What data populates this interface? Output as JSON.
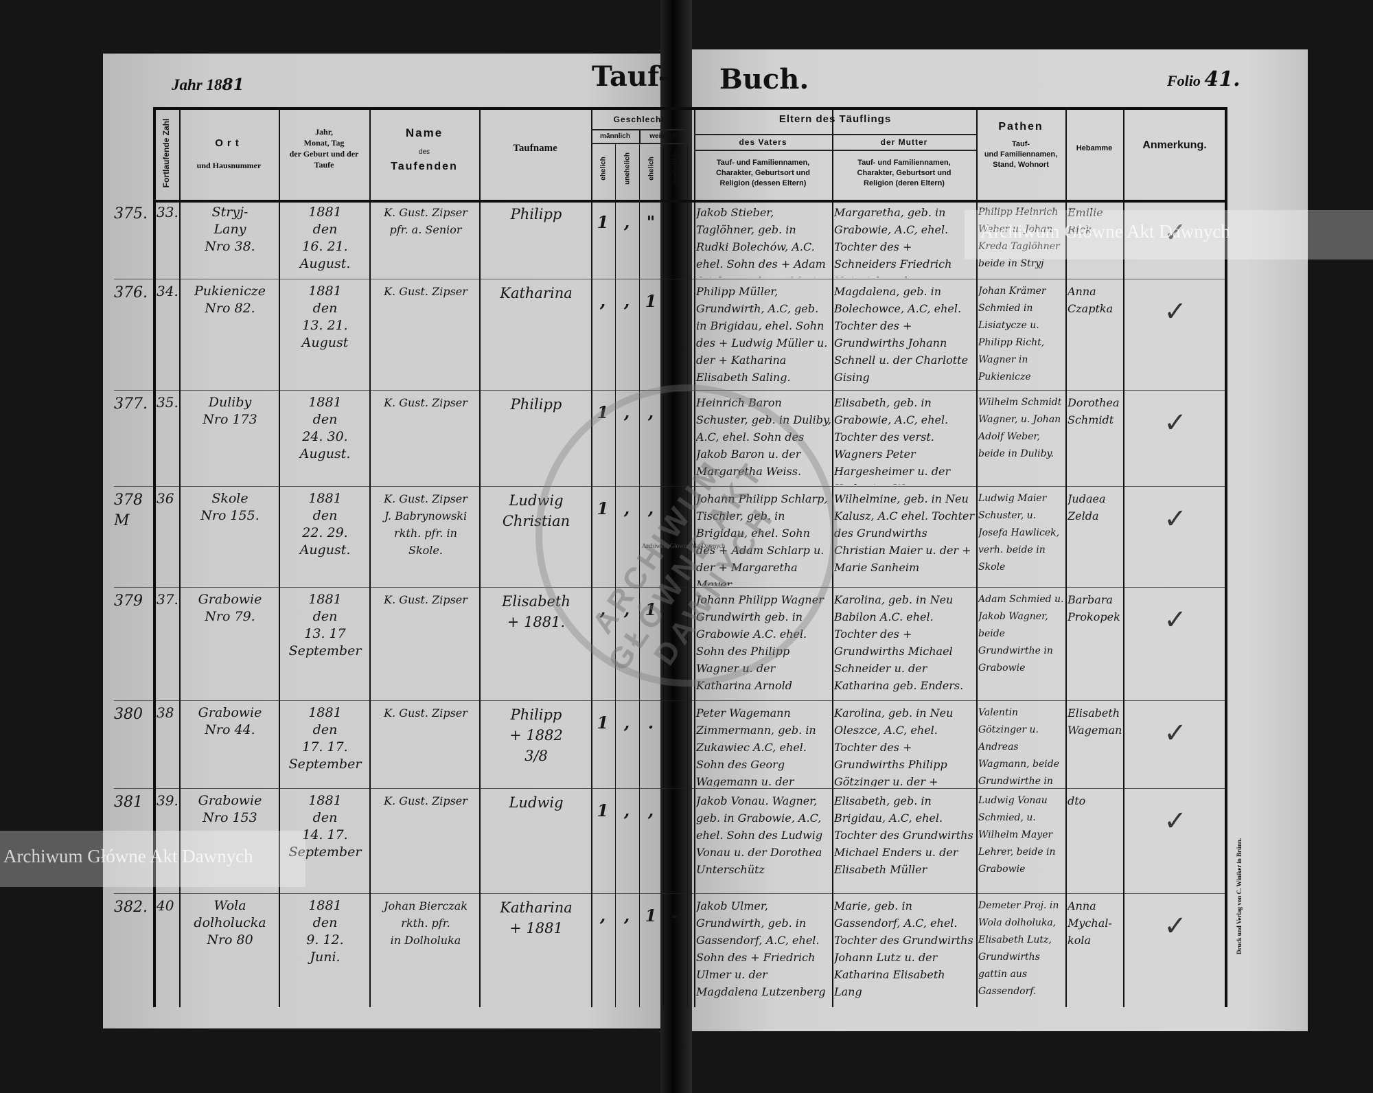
{
  "header": {
    "year_label": "Jahr 18",
    "year_hand": "81",
    "title_left": "Tauf-",
    "title_right": "Buch.",
    "folio_label": "Folio",
    "folio_hand": "41."
  },
  "columns": {
    "fortlaufende": "Fortlaufende Zahl",
    "ort_1": "Ort",
    "ort_2": "und Hausnummer",
    "jahr": "Jahr,\nMonat, Tag\nder Geburt und der\nTaufe",
    "name_1": "Name",
    "name_2": "des",
    "name_3": "Taufenden",
    "taufname": "Taufname",
    "geschlecht": "Geschlecht",
    "maennlich": "männlich",
    "weiblich": "weiblich",
    "ehelich": "ehelich",
    "unehelich": "unehelich",
    "eltern": "Eltern des Täuflings",
    "vater": "des Vaters",
    "mutter": "der Mutter",
    "vater_sub": "Tauf- und Familiennamen,\nCharakter, Geburtsort und\nReligion (dessen Eltern)",
    "mutter_sub": "Tauf- und Familiennamen,\nCharakter, Geburtsort und\nReligion (deren Eltern)",
    "pathen_1": "Pathen",
    "pathen_2": "Tauf-\nund Familiennamen,\nStand, Wohnort",
    "hebamme": "Hebamme",
    "anmerkung": "Anmerkung."
  },
  "rows": [
    {
      "num": "375.",
      "seq": "33.",
      "ort": "Stryj-\nLany\nNro 38.",
      "date": "1881\nden\n16.  21.\nAugust.",
      "name": "K. Gust. Zipser\npfr. a. Senior",
      "taufname": "Philipp",
      "sex": [
        "1",
        ",",
        "\"",
        ""
      ],
      "vater": "Jakob Stieber, Taglöhner, geb. in Rudki Bolechów, A.C. ehel. Sohn des + Adam Stieber u. der + Maria Elisabeth Geistlinger",
      "mutter": "Margaretha, geb. in Grabowie, A.C, ehel. Tochter des + Schneiders Friedrich Heinrich u. der + Christine Schreier.",
      "pathen": "Philipp Heinrich Weber u. Johan Kreda Taglöhner beide in Stryj",
      "hebamme": "Emilie Rick",
      "anmerkung": "✓"
    },
    {
      "num": "376.",
      "seq": "34.",
      "ort": "Pukienicze\nNro 82.",
      "date": "1881\nden\n13.  21.\nAugust",
      "name": "K. Gust. Zipser",
      "taufname": "Katharina",
      "sex": [
        ",",
        ",",
        "1",
        ""
      ],
      "vater": "Philipp Müller, Grundwirth, A.C, geb. in Brigidau, ehel. Sohn des + Ludwig Müller u. der + Katharina Elisabeth Saling.",
      "mutter": "Magdalena, geb. in Bolechowce, A.C, ehel. Tochter des + Grundwirths Johann Schnell u. der Charlotte Gising",
      "pathen": "Johan Krämer Schmied in Lisiatycze u. Philipp Richt, Wagner in Pukienicze",
      "hebamme": "Anna Czaptka",
      "anmerkung": "✓"
    },
    {
      "num": "377.",
      "seq": "35.",
      "ort": "Duliby\nNro 173",
      "date": "1881\nden\n24.  30.\nAugust.",
      "name": "K. Gust. Zipser",
      "taufname": "Philipp",
      "sex": [
        "1",
        ",",
        ",",
        ""
      ],
      "vater": "Heinrich Baron Schuster, geb. in Duliby, A.C, ehel. Sohn des Jakob Baron u. der Margaretha Weiss.",
      "mutter": "Elisabeth, geb. in Grabowie, A.C, ehel. Tochter des verst. Wagners Peter Hargesheimer u. der Katharina Wageman",
      "pathen": "Wilhelm Schmidt Wagner, u. Johan Adolf Weber, beide in Duliby.",
      "hebamme": "Dorothea Schmidt",
      "anmerkung": "✓"
    },
    {
      "num": "378\nM",
      "seq": "36",
      "ort": "Skole\nNro 155.",
      "date": "1881\nden\n22.  29.\nAugust.",
      "name": "K. Gust. Zipser\nJ. Babrynowski\nrkth. pfr. in\nSkole.",
      "taufname": "Ludwig\nChristian",
      "sex": [
        "1",
        ",",
        ",",
        ""
      ],
      "vater": "Johann Philipp Schlarp, Tischler, geb. in Brigidau, ehel. Sohn des + Adam Schlarp u. der + Margaretha Mayer.",
      "mutter": "Wilhelmine, geb. in Neu Kalusz, A.C ehel. Tochter des Grundwirths Christian Maier u. der + Marie Sanheim",
      "pathen": "Ludwig Maier Schuster, u. Josefa Hawlicek, verh. beide in Skole",
      "hebamme": "Judaea Zelda",
      "anmerkung": "✓"
    },
    {
      "num": "379",
      "seq": "37.",
      "ort": "Grabowie\nNro 79.",
      "date": "1881\nden\n13.  17\nSeptember",
      "name": "K. Gust. Zipser",
      "taufname": "Elisabeth\n+ 1881.",
      "sex": [
        ",",
        ",",
        "1",
        ""
      ],
      "vater": "Johann Philipp Wagner Grundwirth geb. in Grabowie A.C. ehel. Sohn des Philipp Wagner u. der Katharina Arnold",
      "mutter": "Karolina, geb. in Neu Babilon A.C. ehel. Tochter des + Grundwirths Michael Schneider u. der Katharina geb. Enders.",
      "pathen": "Adam Schmied u. Jakob Wagner, beide Grundwirthe in Grabowie",
      "hebamme": "Barbara Prokopek",
      "anmerkung": "✓"
    },
    {
      "num": "380",
      "seq": "38",
      "ort": "Grabowie\nNro 44.",
      "date": "1881\nden\n17.  17.\nSeptember",
      "name": "K. Gust. Zipser",
      "taufname": "Philipp\n+ 1882\n3/8",
      "sex": [
        "1",
        ",",
        ".",
        ""
      ],
      "vater": "Peter Wagemann Zimmermann, geb. in Zukawiec A.C, ehel. Sohn des Georg Wagemann u. der Karolina Bauer",
      "mutter": "Karolina, geb. in Neu Oleszce, A.C, ehel. Tochter des + Grundwirths Philipp Götzinger u. der + Elisabeth Frank.",
      "pathen": "Valentin Götzinger u. Andreas Wagmann, beide Grundwirthe in Grabowie",
      "hebamme": "Elisabeth Wageman",
      "anmerkung": "✓"
    },
    {
      "num": "381",
      "seq": "39.",
      "ort": "Grabowie\nNro 153",
      "date": "1881\nden\n14.  17.\nSeptember",
      "name": "K. Gust. Zipser",
      "taufname": "Ludwig",
      "sex": [
        "1",
        ",",
        ",",
        ""
      ],
      "vater": "Jakob Vonau. Wagner, geb. in Grabowie, A.C, ehel. Sohn des Ludwig Vonau u. der Dorothea Unterschütz",
      "mutter": "Elisabeth, geb. in Brigidau, A.C, ehel. Tochter des Grundwirths Michael Enders u. der Elisabeth Müller",
      "pathen": "Ludwig Vonau Schmied, u. Wilhelm Mayer Lehrer, beide in Grabowie",
      "hebamme": "dto",
      "anmerkung": "✓"
    },
    {
      "num": "382.",
      "seq": "40",
      "ort": "Wola dolholucka\nNro 80",
      "date": "1881\nden\n9.  12.\nJuni.",
      "name": "Johan Bierczak\nrkth. pfr.\nin Dolholuka",
      "taufname": "Katharina\n+ 1881",
      "sex": [
        ",",
        ",",
        "1",
        "-"
      ],
      "vater": "Jakob Ulmer, Grundwirth, geb. in Gassendorf, A.C, ehel. Sohn des + Friedrich Ulmer u. der Magdalena Lutzenberg",
      "mutter": "Marie, geb. in Gassendorf, A.C, ehel. Tochter des Grundwirths Johann Lutz u. der Katharina Elisabeth Lang",
      "pathen": "Demeter Proj. in Wola dolholuka, Elisabeth Lutz, Grundwirths gattin aus Gassendorf.",
      "hebamme": "Anna Mychal-kola",
      "anmerkung": "✓"
    }
  ],
  "printer_note": "Druck und Verlag von C. Winiker in Brünn.",
  "watermarks": {
    "text_1": "Archiwum Główne Akt Dawnych",
    "text_2": "Archiwum Główne Akt Dawnych",
    "stamp_text": "ARCHIWUM GŁÓWNE AKT DAWNYCH",
    "stamp_small": "Archiwum Główne Akt Dawnych"
  }
}
